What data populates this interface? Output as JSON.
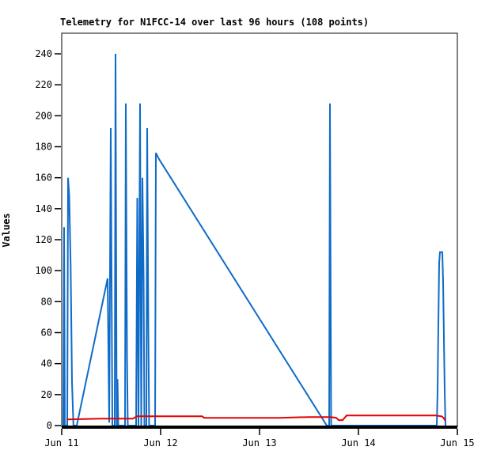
{
  "title": "Telemetry for N1FCC-14 over last 96 hours (108 points)",
  "y_axis_title": "Values",
  "colors": {
    "background": "#ffffff",
    "frame": "#3c3c3c",
    "tick_text": "#000000",
    "series_blue": "#0f6bc8",
    "series_red": "#e60000",
    "baseline_black": "#000000"
  },
  "chart_data": {
    "type": "line",
    "title": "Telemetry for N1FCC-14 over last 96 hours (108 points)",
    "ylabel": "Values",
    "xlabel": "",
    "grid": false,
    "legend": "none",
    "ylim": [
      0,
      240
    ],
    "xlim_days": [
      0,
      4
    ],
    "yticks": [
      0,
      20,
      40,
      60,
      80,
      100,
      120,
      140,
      160,
      180,
      200,
      220,
      240
    ],
    "xticks": [
      {
        "t": 0,
        "label": "Jun 11"
      },
      {
        "t": 1,
        "label": "Jun 12"
      },
      {
        "t": 2,
        "label": "Jun 13"
      },
      {
        "t": 3,
        "label": "Jun 14"
      },
      {
        "t": 4,
        "label": "Jun 15"
      }
    ],
    "series": [
      {
        "name": "telemetry-channel-blue",
        "color": "#0f6bc8",
        "stroke_width": 2,
        "points": [
          [
            0.0,
            0
          ],
          [
            0.016,
            0
          ],
          [
            0.024,
            128
          ],
          [
            0.032,
            0
          ],
          [
            0.056,
            0
          ],
          [
            0.064,
            160
          ],
          [
            0.076,
            148
          ],
          [
            0.09,
            103
          ],
          [
            0.104,
            28
          ],
          [
            0.118,
            0
          ],
          [
            0.152,
            0
          ],
          [
            0.464,
            95
          ],
          [
            0.48,
            2
          ],
          [
            0.496,
            192
          ],
          [
            0.512,
            0
          ],
          [
            0.536,
            0
          ],
          [
            0.544,
            240
          ],
          [
            0.556,
            0
          ],
          [
            0.564,
            30
          ],
          [
            0.572,
            0
          ],
          [
            0.64,
            0
          ],
          [
            0.648,
            208
          ],
          [
            0.66,
            45
          ],
          [
            0.668,
            0
          ],
          [
            0.752,
            0
          ],
          [
            0.764,
            147
          ],
          [
            0.776,
            0
          ],
          [
            0.792,
            208
          ],
          [
            0.804,
            0
          ],
          [
            0.816,
            160
          ],
          [
            0.828,
            96
          ],
          [
            0.836,
            0
          ],
          [
            0.856,
            0
          ],
          [
            0.864,
            192
          ],
          [
            0.876,
            60
          ],
          [
            0.884,
            0
          ],
          [
            0.944,
            0
          ],
          [
            0.952,
            176
          ],
          [
            0.984,
            172
          ],
          [
            2.68,
            0
          ],
          [
            2.704,
            0
          ],
          [
            2.712,
            208
          ],
          [
            2.724,
            0
          ],
          [
            3.792,
            0
          ],
          [
            3.8,
            22
          ],
          [
            3.808,
            65
          ],
          [
            3.816,
            105
          ],
          [
            3.824,
            112
          ],
          [
            3.848,
            112
          ],
          [
            3.856,
            93
          ],
          [
            3.864,
            57
          ],
          [
            3.872,
            22
          ],
          [
            3.88,
            0
          ]
        ]
      },
      {
        "name": "telemetry-channel-red",
        "color": "#e60000",
        "stroke_width": 2,
        "points": [
          [
            0.048,
            4
          ],
          [
            0.4,
            4.5
          ],
          [
            0.72,
            4.5
          ],
          [
            0.76,
            6
          ],
          [
            1.42,
            6
          ],
          [
            1.44,
            5
          ],
          [
            2.2,
            5
          ],
          [
            2.5,
            5.5
          ],
          [
            2.72,
            5.5
          ],
          [
            2.776,
            5
          ],
          [
            2.8,
            3.5
          ],
          [
            2.84,
            3.5
          ],
          [
            2.88,
            6.5
          ],
          [
            3.4,
            6.5
          ],
          [
            3.78,
            6.5
          ],
          [
            3.84,
            6
          ],
          [
            3.86,
            5
          ],
          [
            3.88,
            3
          ]
        ]
      },
      {
        "name": "telemetry-channel-black-baseline",
        "color": "#000000",
        "stroke_width": 4,
        "points": [
          [
            0.0,
            0
          ],
          [
            4.0,
            0
          ]
        ]
      }
    ]
  }
}
